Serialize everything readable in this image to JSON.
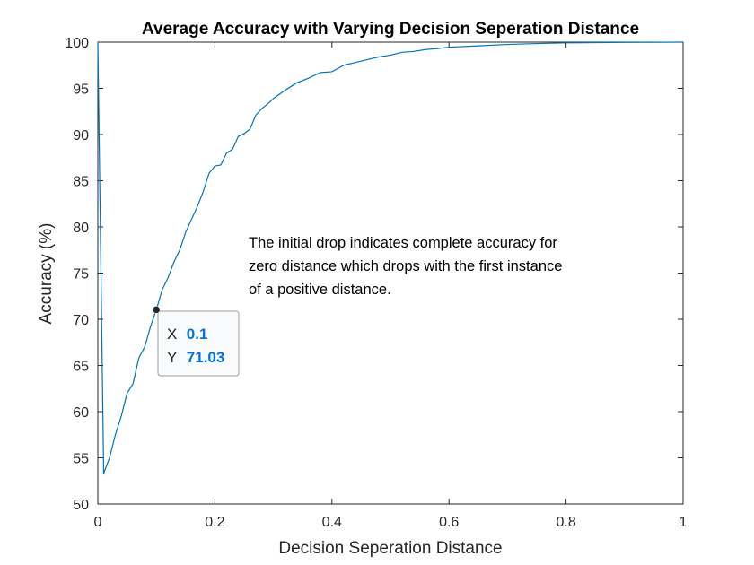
{
  "chart_data": {
    "type": "line",
    "title": "Average Accuracy with Varying Decision Seperation Distance",
    "xlabel": "Decision Seperation Distance",
    "ylabel": "Accuracy (%)",
    "xlim": [
      0,
      1
    ],
    "ylim": [
      50,
      100
    ],
    "xticks": [
      0,
      0.2,
      0.4,
      0.6,
      0.8,
      1
    ],
    "xtick_labels": [
      "0",
      "0.2",
      "0.4",
      "0.6",
      "0.8",
      "1"
    ],
    "yticks": [
      50,
      55,
      60,
      65,
      70,
      75,
      80,
      85,
      90,
      95,
      100
    ],
    "ytick_labels": [
      "50",
      "55",
      "60",
      "65",
      "70",
      "75",
      "80",
      "85",
      "90",
      "95",
      "100"
    ],
    "grid": false,
    "line_color": "#0072bd",
    "series": [
      {
        "x": [
          0,
          0.01,
          0.02,
          0.03,
          0.04,
          0.05,
          0.06,
          0.07,
          0.08,
          0.09,
          0.1,
          0.11,
          0.12,
          0.13,
          0.14,
          0.15,
          0.16,
          0.17,
          0.18,
          0.19,
          0.2,
          0.21,
          0.22,
          0.23,
          0.24,
          0.25,
          0.26,
          0.27,
          0.28,
          0.29,
          0.3,
          0.32,
          0.34,
          0.36,
          0.38,
          0.4,
          0.42,
          0.44,
          0.46,
          0.48,
          0.5,
          0.52,
          0.54,
          0.56,
          0.58,
          0.6,
          0.65,
          0.7,
          0.75,
          0.8,
          0.85,
          0.9,
          0.95,
          1.0
        ],
        "y": [
          100,
          53.3,
          55.0,
          57.5,
          59.5,
          62.0,
          63.0,
          65.8,
          67.0,
          69.2,
          71.03,
          73.2,
          74.5,
          76.2,
          77.5,
          79.4,
          80.8,
          82.2,
          83.8,
          85.8,
          86.6,
          86.7,
          88.0,
          88.4,
          89.8,
          90.1,
          90.6,
          92.1,
          92.8,
          93.3,
          93.9,
          94.8,
          95.6,
          96.1,
          96.7,
          96.8,
          97.5,
          97.8,
          98.1,
          98.4,
          98.6,
          98.9,
          99.0,
          99.2,
          99.3,
          99.45,
          99.6,
          99.75,
          99.85,
          99.92,
          99.95,
          99.97,
          99.98,
          100
        ]
      }
    ],
    "annotation": {
      "lines": [
        "The initial drop indicates complete accuracy for",
        "zero distance which drops with the first instance",
        "of a positive distance."
      ]
    },
    "datatip": {
      "x": 0.1,
      "y": 71.03,
      "x_key": "X",
      "y_key": "Y",
      "x_text": "0.1",
      "y_text": "71.03"
    }
  }
}
